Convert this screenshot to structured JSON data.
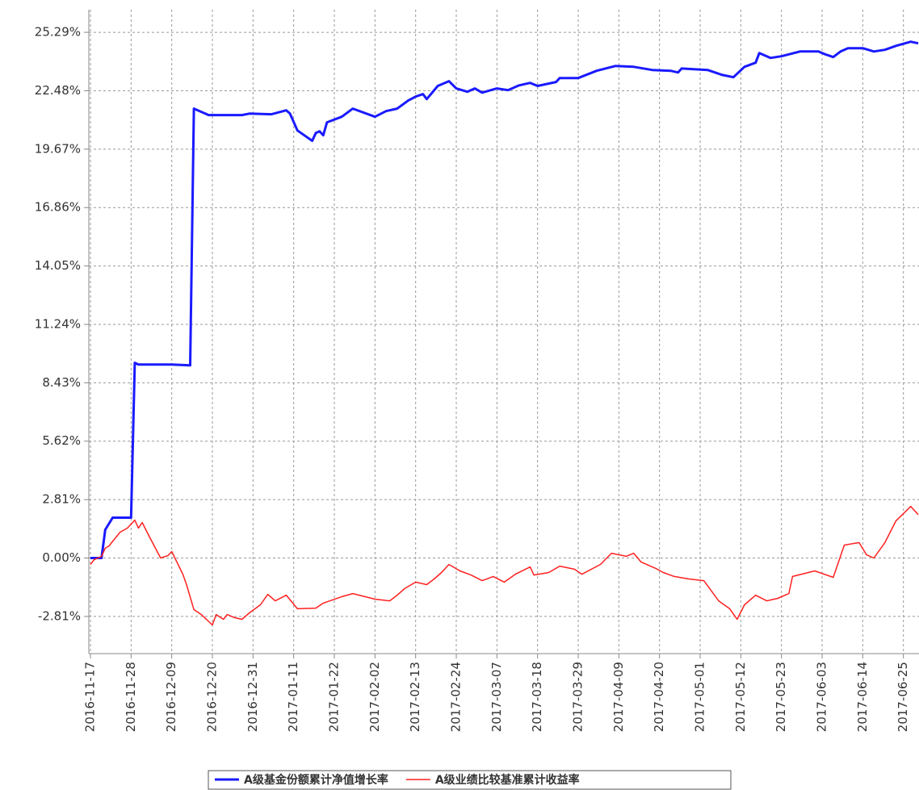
{
  "chart_data": {
    "type": "line",
    "x": {
      "blue": [
        "2016-11-17",
        "2016-11-20",
        "2016-11-21",
        "2016-11-23",
        "2016-11-28",
        "2016-11-29",
        "2016-11-30",
        "2016-12-09",
        "2016-12-14",
        "2016-12-15",
        "2016-12-19",
        "2016-12-28",
        "2016-12-30",
        "2017-01-05",
        "2017-01-09",
        "2017-01-10",
        "2017-01-12",
        "2017-01-16",
        "2017-01-17",
        "2017-01-18",
        "2017-01-19",
        "2017-01-20",
        "2017-01-24",
        "2017-01-27",
        "2017-02-02",
        "2017-02-05",
        "2017-02-08",
        "2017-02-11",
        "2017-02-13",
        "2017-02-15",
        "2017-02-16",
        "2017-02-19",
        "2017-02-22",
        "2017-02-24",
        "2017-02-27",
        "2017-03-01",
        "2017-03-03",
        "2017-03-07",
        "2017-03-10",
        "2017-03-13",
        "2017-03-16",
        "2017-03-18",
        "2017-03-23",
        "2017-03-24",
        "2017-03-29",
        "2017-04-03",
        "2017-04-08",
        "2017-04-13",
        "2017-04-18",
        "2017-04-23",
        "2017-04-25",
        "2017-04-26",
        "2017-05-03",
        "2017-05-07",
        "2017-05-10",
        "2017-05-13",
        "2017-05-16",
        "2017-05-17",
        "2017-05-20",
        "2017-05-23",
        "2017-05-28",
        "2017-06-02",
        "2017-06-04",
        "2017-06-06",
        "2017-06-08",
        "2017-06-10",
        "2017-06-14",
        "2017-06-17",
        "2017-06-20",
        "2017-06-23",
        "2017-06-27",
        "2017-06-29"
      ],
      "red": [
        "2016-11-17",
        "2016-11-18",
        "2016-11-20",
        "2016-11-21",
        "2016-11-22",
        "2016-11-25",
        "2016-11-27",
        "2016-11-29",
        "2016-11-30",
        "2016-12-01",
        "2016-12-03",
        "2016-12-06",
        "2016-12-08",
        "2016-12-09",
        "2016-12-12",
        "2016-12-13",
        "2016-12-15",
        "2016-12-17",
        "2016-12-20",
        "2016-12-21",
        "2016-12-23",
        "2016-12-24",
        "2016-12-26",
        "2016-12-28",
        "2016-12-30",
        "2017-01-02",
        "2017-01-04",
        "2017-01-06",
        "2017-01-09",
        "2017-01-12",
        "2017-01-17",
        "2017-01-19",
        "2017-01-24",
        "2017-01-27",
        "2017-02-02",
        "2017-02-06",
        "2017-02-08",
        "2017-02-10",
        "2017-02-13",
        "2017-02-16",
        "2017-02-18",
        "2017-02-20",
        "2017-02-22",
        "2017-02-25",
        "2017-02-28",
        "2017-03-03",
        "2017-03-06",
        "2017-03-09",
        "2017-03-12",
        "2017-03-16",
        "2017-03-17",
        "2017-03-21",
        "2017-03-24",
        "2017-03-28",
        "2017-03-30",
        "2017-04-04",
        "2017-04-07",
        "2017-04-11",
        "2017-04-13",
        "2017-04-15",
        "2017-04-19",
        "2017-04-21",
        "2017-04-24",
        "2017-04-28",
        "2017-05-02",
        "2017-05-06",
        "2017-05-09",
        "2017-05-11",
        "2017-05-13",
        "2017-05-16",
        "2017-05-19",
        "2017-05-22",
        "2017-05-25",
        "2017-05-26",
        "2017-06-01",
        "2017-06-06",
        "2017-06-09",
        "2017-06-13",
        "2017-06-15",
        "2017-06-17",
        "2017-06-20",
        "2017-06-23",
        "2017-06-27",
        "2017-06-29"
      ]
    },
    "series": [
      {
        "name": "A级基金份额累计净值增长率",
        "color": "#1a1aff",
        "xkey": "blue",
        "width": 3,
        "values": [
          0.0,
          0.0,
          1.36,
          1.94,
          1.94,
          9.39,
          9.31,
          9.31,
          9.27,
          21.62,
          21.31,
          21.31,
          21.38,
          21.35,
          21.54,
          21.38,
          20.57,
          20.07,
          20.45,
          20.53,
          20.34,
          20.96,
          21.23,
          21.62,
          21.23,
          21.5,
          21.62,
          22.01,
          22.2,
          22.32,
          22.08,
          22.71,
          22.94,
          22.59,
          22.43,
          22.59,
          22.39,
          22.59,
          22.51,
          22.74,
          22.86,
          22.71,
          22.9,
          23.09,
          23.09,
          23.44,
          23.67,
          23.63,
          23.48,
          23.44,
          23.36,
          23.55,
          23.48,
          23.24,
          23.13,
          23.63,
          23.83,
          24.29,
          24.06,
          24.14,
          24.37,
          24.37,
          24.22,
          24.1,
          24.37,
          24.53,
          24.53,
          24.37,
          24.45,
          24.64,
          24.84,
          24.76
        ]
      },
      {
        "name": "A级业绩比较基准累计收益率",
        "color": "#ff2020",
        "xkey": "red",
        "width": 1.5,
        "values": [
          -0.31,
          -0.08,
          0.08,
          0.47,
          0.58,
          1.24,
          1.44,
          1.82,
          1.44,
          1.71,
          1.01,
          0.0,
          0.12,
          0.31,
          -0.78,
          -1.28,
          -2.48,
          -2.72,
          -3.22,
          -2.72,
          -2.95,
          -2.72,
          -2.87,
          -2.95,
          -2.64,
          -2.25,
          -1.75,
          -2.06,
          -1.79,
          -2.44,
          -2.41,
          -2.17,
          -1.86,
          -1.71,
          -1.98,
          -2.06,
          -1.79,
          -1.47,
          -1.16,
          -1.28,
          -1.01,
          -0.7,
          -0.31,
          -0.62,
          -0.82,
          -1.09,
          -0.89,
          -1.16,
          -0.78,
          -0.43,
          -0.82,
          -0.7,
          -0.39,
          -0.54,
          -0.78,
          -0.31,
          0.23,
          0.08,
          0.23,
          -0.19,
          -0.5,
          -0.7,
          -0.89,
          -1.01,
          -1.09,
          -2.06,
          -2.44,
          -2.95,
          -2.25,
          -1.79,
          -2.06,
          -1.94,
          -1.71,
          -0.89,
          -0.62,
          -0.93,
          0.62,
          0.74,
          0.16,
          0.0,
          0.74,
          1.79,
          2.48,
          2.09
        ]
      }
    ],
    "xlim": [
      "2016-11-17",
      "2017-06-29"
    ],
    "xticks": [
      "2016-11-17",
      "2016-11-28",
      "2016-12-09",
      "2016-12-20",
      "2016-12-31",
      "2017-01-11",
      "2017-01-22",
      "2017-02-02",
      "2017-02-13",
      "2017-02-24",
      "2017-03-07",
      "2017-03-18",
      "2017-03-29",
      "2017-04-09",
      "2017-04-20",
      "2017-05-01",
      "2017-05-12",
      "2017-05-23",
      "2017-06-03",
      "2017-06-14",
      "2017-06-25"
    ],
    "ylim": [
      -4.6,
      26.38
    ],
    "yticks": [
      {
        "value": -2.81,
        "label": "-2.81%"
      },
      {
        "value": 0,
        "label": "0.00%"
      },
      {
        "value": 2.81,
        "label": "2.81%"
      },
      {
        "value": 5.62,
        "label": "5.62%"
      },
      {
        "value": 8.43,
        "label": "8.43%"
      },
      {
        "value": 11.24,
        "label": "11.24%"
      },
      {
        "value": 14.05,
        "label": "14.05%"
      },
      {
        "value": 16.86,
        "label": "16.86%"
      },
      {
        "value": 19.67,
        "label": "19.67%"
      },
      {
        "value": 22.48,
        "label": "22.48%"
      },
      {
        "value": 25.29,
        "label": "25.29%"
      }
    ],
    "grid": true
  }
}
